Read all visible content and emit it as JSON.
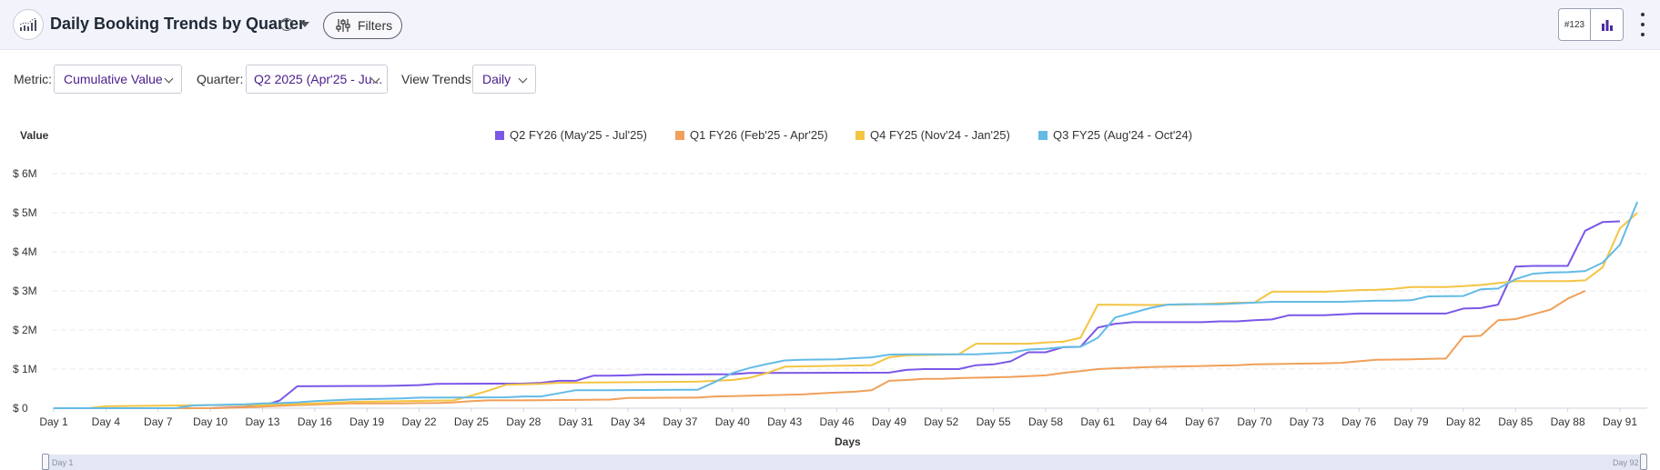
{
  "header": {
    "title": "Daily Booking Trends by Quarter",
    "info_glyph": "i",
    "filters_label": "Filters",
    "number_toggle_label": "#123",
    "icons": [
      "line-chart-icon",
      "info-icon",
      "chevron-down-icon",
      "sliders-icon",
      "bar-chart-icon",
      "kebab-menu-icon"
    ]
  },
  "controls": {
    "metric_label": "Metric:",
    "metric_value": "Cumulative Value",
    "quarter_label": "Quarter:",
    "quarter_value": "Q2 2025 (Apr'25 - Ju...",
    "trends_label": "View Trends:",
    "trends_value": "Daily"
  },
  "navigator": {
    "start_label": "Day 1",
    "end_label": "Day 92"
  },
  "chart_data": {
    "type": "line",
    "title": "",
    "ylabel": "Value",
    "xlabel": "Days",
    "ylim": [
      0,
      6000000
    ],
    "xlim": [
      1,
      93
    ],
    "y_ticks": [
      0,
      1000000,
      2000000,
      3000000,
      4000000,
      5000000,
      6000000
    ],
    "y_tick_labels": [
      "$ 0",
      "$ 1M",
      "$ 2M",
      "$ 3M",
      "$ 4M",
      "$ 5M",
      "$ 6M"
    ],
    "x_ticks": [
      1,
      4,
      7,
      10,
      13,
      16,
      19,
      22,
      25,
      28,
      31,
      34,
      37,
      40,
      43,
      46,
      49,
      52,
      55,
      58,
      61,
      64,
      67,
      70,
      73,
      76,
      79,
      82,
      85,
      88,
      91
    ],
    "x_tick_labels": [
      "Day 1",
      "Day 4",
      "Day 7",
      "Day 10",
      "Day 13",
      "Day 16",
      "Day 19",
      "Day 22",
      "Day 25",
      "Day 28",
      "Day 31",
      "Day 34",
      "Day 37",
      "Day 40",
      "Day 43",
      "Day 46",
      "Day 49",
      "Day 52",
      "Day 55",
      "Day 58",
      "Day 61",
      "Day 64",
      "Day 67",
      "Day 70",
      "Day 73",
      "Day 76",
      "Day 79",
      "Day 82",
      "Day 85",
      "Day 88",
      "Day 91"
    ],
    "grid": true,
    "legend_position": "top-center",
    "series": [
      {
        "name": "Q2 FY26 (May'25 - Jul'25)",
        "color": "#7b57e8",
        "x": [
          1,
          10,
          12,
          13,
          14,
          15,
          20,
          21,
          22,
          23,
          28,
          29,
          30,
          31,
          32,
          33,
          34,
          35,
          36,
          40,
          41,
          49,
          50,
          51,
          52,
          53,
          54,
          55,
          56,
          57,
          58,
          59,
          60,
          61,
          62,
          63,
          66,
          67,
          68,
          69,
          70,
          71,
          72,
          73,
          74,
          76,
          77,
          78,
          79,
          80,
          81,
          82,
          83,
          84,
          85,
          86,
          87,
          88,
          89,
          90,
          91
        ],
        "values": [
          0,
          0,
          30000,
          60000,
          200000,
          560000,
          570000,
          580000,
          590000,
          620000,
          630000,
          650000,
          700000,
          700000,
          830000,
          830000,
          840000,
          860000,
          860000,
          870000,
          900000,
          910000,
          980000,
          1000000,
          1000000,
          1000000,
          1100000,
          1120000,
          1200000,
          1430000,
          1430000,
          1560000,
          1570000,
          2060000,
          2160000,
          2200000,
          2200000,
          2200000,
          2220000,
          2220000,
          2250000,
          2270000,
          2380000,
          2380000,
          2380000,
          2420000,
          2420000,
          2420000,
          2420000,
          2420000,
          2420000,
          2550000,
          2560000,
          2650000,
          3620000,
          3640000,
          3640000,
          3640000,
          4540000,
          4760000,
          4780000
        ]
      },
      {
        "name": "Q1 FY26 (Feb'25 - Apr'25)",
        "color": "#f0a05a",
        "x": [
          1,
          10,
          11,
          12,
          13,
          14,
          15,
          18,
          21,
          22,
          23,
          24,
          25,
          26,
          27,
          28,
          33,
          34,
          38,
          39,
          40,
          44,
          45,
          46,
          47,
          48,
          49,
          50,
          51,
          52,
          53,
          54,
          56,
          57,
          58,
          59,
          60,
          61,
          62,
          64,
          67,
          68,
          69,
          70,
          74,
          75,
          76,
          77,
          79,
          80,
          81,
          82,
          83,
          84,
          85,
          86,
          87,
          88,
          89
        ],
        "values": [
          0,
          0,
          10000,
          20000,
          40000,
          60000,
          80000,
          120000,
          120000,
          130000,
          130000,
          150000,
          180000,
          200000,
          200000,
          200000,
          220000,
          260000,
          270000,
          300000,
          310000,
          350000,
          380000,
          400000,
          420000,
          460000,
          700000,
          720000,
          750000,
          750000,
          770000,
          780000,
          800000,
          820000,
          840000,
          900000,
          950000,
          1000000,
          1020000,
          1050000,
          1080000,
          1090000,
          1100000,
          1120000,
          1150000,
          1160000,
          1200000,
          1240000,
          1250000,
          1260000,
          1270000,
          1830000,
          1850000,
          2250000,
          2280000,
          2400000,
          2520000,
          2800000,
          3000000
        ]
      },
      {
        "name": "Q4 FY25 (Nov'24 - Jan'25)",
        "color": "#f4c444",
        "x": [
          1,
          3,
          4,
          10,
          13,
          14,
          16,
          18,
          24,
          25,
          26,
          27,
          29,
          30,
          38,
          39,
          40,
          41,
          42,
          43,
          44,
          48,
          49,
          50,
          52,
          53,
          54,
          56,
          57,
          58,
          59,
          60,
          61,
          64,
          66,
          69,
          70,
          71,
          72,
          73,
          74,
          75,
          76,
          77,
          78,
          79,
          80,
          81,
          82,
          83,
          84,
          85,
          86,
          87,
          88,
          89,
          90,
          91,
          92
        ],
        "values": [
          0,
          0,
          50000,
          80000,
          80000,
          100000,
          120000,
          160000,
          200000,
          320000,
          450000,
          600000,
          620000,
          650000,
          680000,
          700000,
          720000,
          780000,
          900000,
          1060000,
          1070000,
          1100000,
          1300000,
          1350000,
          1370000,
          1380000,
          1650000,
          1650000,
          1650000,
          1680000,
          1700000,
          1800000,
          2650000,
          2640000,
          2650000,
          2700000,
          2700000,
          2980000,
          2980000,
          2980000,
          2980000,
          3000000,
          3020000,
          3030000,
          3050000,
          3100000,
          3100000,
          3100000,
          3120000,
          3150000,
          3200000,
          3250000,
          3250000,
          3250000,
          3250000,
          3270000,
          3600000,
          4600000,
          5000000
        ]
      },
      {
        "name": "Q3 FY25 (Aug'24 - Oct'24)",
        "color": "#63bbe6",
        "x": [
          1,
          8,
          9,
          12,
          13,
          14,
          15,
          16,
          18,
          21,
          22,
          27,
          28,
          29,
          30,
          31,
          32,
          33,
          37,
          38,
          39,
          40,
          41,
          42,
          43,
          44,
          46,
          47,
          48,
          49,
          50,
          53,
          54,
          55,
          56,
          57,
          58,
          59,
          60,
          61,
          62,
          63,
          64,
          65,
          66,
          67,
          68,
          69,
          70,
          71,
          72,
          73,
          75,
          77,
          78,
          79,
          80,
          82,
          83,
          84,
          85,
          86,
          87,
          88,
          89,
          90,
          91,
          92
        ],
        "values": [
          0,
          0,
          70000,
          100000,
          120000,
          130000,
          150000,
          180000,
          220000,
          250000,
          270000,
          280000,
          300000,
          300000,
          380000,
          460000,
          460000,
          460000,
          470000,
          470000,
          670000,
          900000,
          1030000,
          1130000,
          1220000,
          1240000,
          1250000,
          1280000,
          1300000,
          1370000,
          1380000,
          1380000,
          1380000,
          1400000,
          1420000,
          1500000,
          1520000,
          1560000,
          1570000,
          1800000,
          2320000,
          2440000,
          2560000,
          2650000,
          2660000,
          2660000,
          2660000,
          2680000,
          2700000,
          2720000,
          2720000,
          2720000,
          2720000,
          2750000,
          2750000,
          2760000,
          2860000,
          2870000,
          3040000,
          3060000,
          3300000,
          3440000,
          3470000,
          3480000,
          3510000,
          3720000,
          4180000,
          5280000
        ]
      }
    ]
  }
}
